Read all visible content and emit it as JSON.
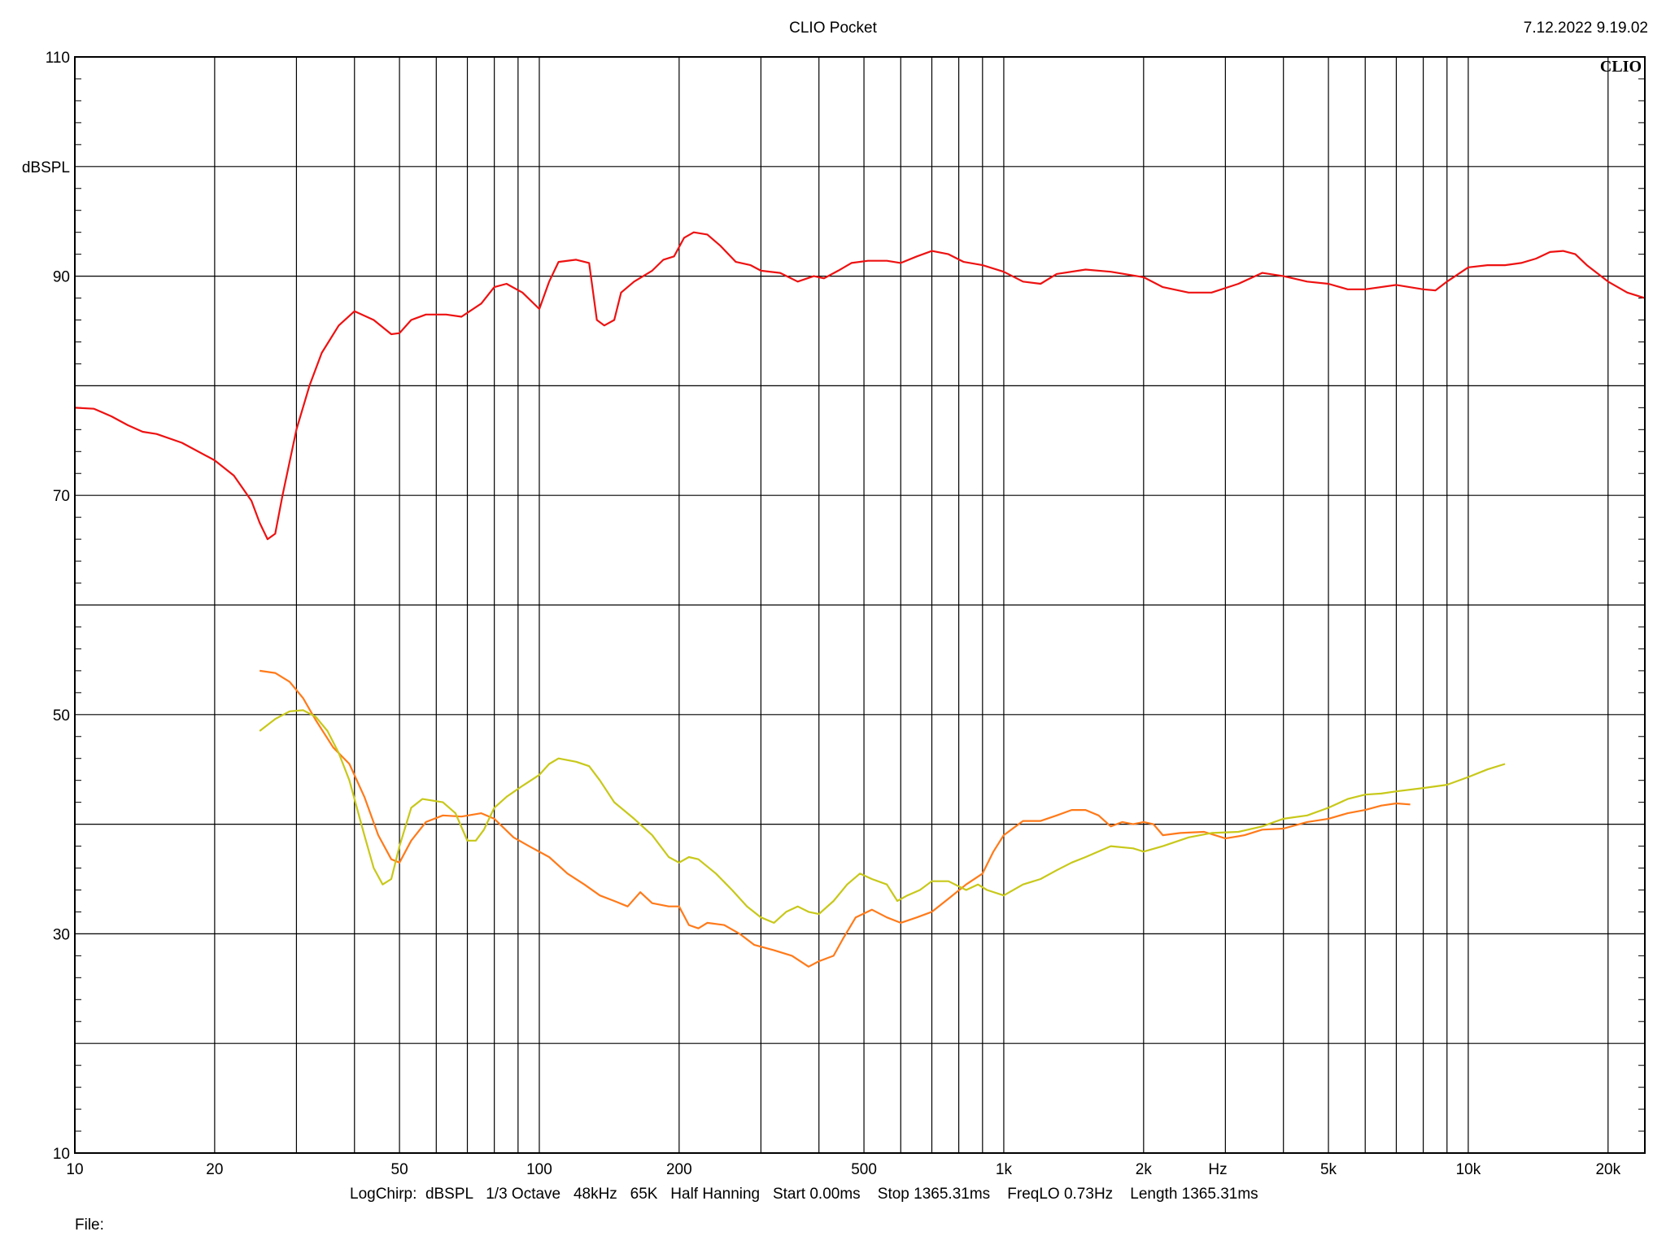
{
  "header": {
    "title": "CLIO Pocket",
    "timestamp": "7.12.2022 9.19.02",
    "logo": "CLIO"
  },
  "footer": {
    "settings": "LogChirp:  dBSPL   1/3 Octave   48kHz   65K   Half Hanning   Start 0.00ms    Stop 1365.31ms    FreqLO 0.73Hz    Length 1365.31ms",
    "file_label": "File:"
  },
  "chart_data": {
    "type": "line",
    "title": "CLIO Pocket",
    "xlabel": "Hz",
    "ylabel": "dBSPL",
    "x_scale": "log",
    "xlim": [
      10,
      24000
    ],
    "ylim": [
      10,
      110
    ],
    "grid": true,
    "x_ticks": [
      {
        "v": 10,
        "label": "10"
      },
      {
        "v": 20,
        "label": "20"
      },
      {
        "v": 50,
        "label": "50"
      },
      {
        "v": 100,
        "label": "100"
      },
      {
        "v": 200,
        "label": "200"
      },
      {
        "v": 500,
        "label": "500"
      },
      {
        "v": 1000,
        "label": "1k"
      },
      {
        "v": 2000,
        "label": "2k"
      },
      {
        "v": 5000,
        "label": "5k"
      },
      {
        "v": 10000,
        "label": "10k"
      },
      {
        "v": 20000,
        "label": "20k"
      }
    ],
    "y_ticks": [
      {
        "v": 10,
        "label": "10"
      },
      {
        "v": 30,
        "label": "30"
      },
      {
        "v": 50,
        "label": "50"
      },
      {
        "v": 70,
        "label": "70"
      },
      {
        "v": 90,
        "label": "90"
      },
      {
        "v": 110,
        "label": "110"
      }
    ],
    "series": [
      {
        "color": "#ee1111",
        "points": [
          [
            10,
            78
          ],
          [
            11,
            77.9
          ],
          [
            12,
            77.2
          ],
          [
            13,
            76.4
          ],
          [
            14,
            75.8
          ],
          [
            15,
            75.6
          ],
          [
            17,
            74.8
          ],
          [
            20,
            73.2
          ],
          [
            22,
            71.8
          ],
          [
            24,
            69.5
          ],
          [
            25,
            67.5
          ],
          [
            26,
            66.0
          ],
          [
            27,
            66.5
          ],
          [
            28,
            70.0
          ],
          [
            30,
            76.0
          ],
          [
            32,
            80.0
          ],
          [
            34,
            83.0
          ],
          [
            37,
            85.5
          ],
          [
            40,
            86.8
          ],
          [
            44,
            86.0
          ],
          [
            48,
            84.7
          ],
          [
            50,
            84.8
          ],
          [
            53,
            86.0
          ],
          [
            57,
            86.5
          ],
          [
            63,
            86.5
          ],
          [
            68,
            86.3
          ],
          [
            75,
            87.5
          ],
          [
            80,
            89.0
          ],
          [
            85,
            89.3
          ],
          [
            92,
            88.5
          ],
          [
            100,
            87.0
          ],
          [
            105,
            89.5
          ],
          [
            110,
            91.3
          ],
          [
            120,
            91.5
          ],
          [
            128,
            91.2
          ],
          [
            133,
            86.0
          ],
          [
            138,
            85.5
          ],
          [
            145,
            86.0
          ],
          [
            150,
            88.5
          ],
          [
            160,
            89.5
          ],
          [
            175,
            90.5
          ],
          [
            185,
            91.5
          ],
          [
            195,
            91.8
          ],
          [
            205,
            93.5
          ],
          [
            215,
            94.0
          ],
          [
            230,
            93.8
          ],
          [
            245,
            92.8
          ],
          [
            265,
            91.3
          ],
          [
            285,
            91.0
          ],
          [
            300,
            90.5
          ],
          [
            330,
            90.3
          ],
          [
            360,
            89.5
          ],
          [
            390,
            90.0
          ],
          [
            410,
            89.8
          ],
          [
            440,
            90.5
          ],
          [
            470,
            91.2
          ],
          [
            510,
            91.4
          ],
          [
            560,
            91.4
          ],
          [
            600,
            91.2
          ],
          [
            650,
            91.8
          ],
          [
            700,
            92.3
          ],
          [
            760,
            92.0
          ],
          [
            820,
            91.3
          ],
          [
            900,
            91.0
          ],
          [
            1000,
            90.4
          ],
          [
            1100,
            89.5
          ],
          [
            1200,
            89.3
          ],
          [
            1300,
            90.2
          ],
          [
            1500,
            90.6
          ],
          [
            1700,
            90.4
          ],
          [
            2000,
            89.9
          ],
          [
            2200,
            89.0
          ],
          [
            2500,
            88.5
          ],
          [
            2800,
            88.5
          ],
          [
            3200,
            89.3
          ],
          [
            3600,
            90.3
          ],
          [
            4000,
            90.0
          ],
          [
            4500,
            89.5
          ],
          [
            5000,
            89.3
          ],
          [
            5500,
            88.8
          ],
          [
            6000,
            88.8
          ],
          [
            7000,
            89.2
          ],
          [
            8000,
            88.8
          ],
          [
            8500,
            88.7
          ],
          [
            9000,
            89.5
          ],
          [
            10000,
            90.8
          ],
          [
            11000,
            91.0
          ],
          [
            12000,
            91.0
          ],
          [
            13000,
            91.2
          ],
          [
            14000,
            91.6
          ],
          [
            15000,
            92.2
          ],
          [
            16000,
            92.3
          ],
          [
            17000,
            92.0
          ],
          [
            18000,
            91.0
          ],
          [
            20000,
            89.5
          ],
          [
            22000,
            88.5
          ],
          [
            24000,
            88.0
          ]
        ]
      },
      {
        "color": "#ff7a1a",
        "points": [
          [
            25,
            54.0
          ],
          [
            27,
            53.8
          ],
          [
            29,
            53.0
          ],
          [
            31,
            51.5
          ],
          [
            33,
            49.5
          ],
          [
            36,
            47.0
          ],
          [
            39,
            45.5
          ],
          [
            42,
            42.5
          ],
          [
            45,
            39.0
          ],
          [
            48,
            36.8
          ],
          [
            50,
            36.5
          ],
          [
            53,
            38.5
          ],
          [
            57,
            40.2
          ],
          [
            62,
            40.8
          ],
          [
            68,
            40.7
          ],
          [
            75,
            41.0
          ],
          [
            80,
            40.5
          ],
          [
            88,
            38.8
          ],
          [
            95,
            38.0
          ],
          [
            105,
            37.0
          ],
          [
            115,
            35.5
          ],
          [
            125,
            34.5
          ],
          [
            135,
            33.5
          ],
          [
            145,
            33.0
          ],
          [
            155,
            32.5
          ],
          [
            165,
            33.8
          ],
          [
            175,
            32.8
          ],
          [
            190,
            32.5
          ],
          [
            200,
            32.5
          ],
          [
            210,
            30.8
          ],
          [
            220,
            30.5
          ],
          [
            230,
            31.0
          ],
          [
            250,
            30.8
          ],
          [
            270,
            30.0
          ],
          [
            290,
            29.0
          ],
          [
            320,
            28.5
          ],
          [
            350,
            28.0
          ],
          [
            380,
            27.0
          ],
          [
            400,
            27.5
          ],
          [
            430,
            28.0
          ],
          [
            450,
            29.5
          ],
          [
            480,
            31.5
          ],
          [
            520,
            32.2
          ],
          [
            560,
            31.5
          ],
          [
            600,
            31.0
          ],
          [
            650,
            31.5
          ],
          [
            700,
            32.0
          ],
          [
            760,
            33.2
          ],
          [
            830,
            34.5
          ],
          [
            900,
            35.5
          ],
          [
            950,
            37.5
          ],
          [
            1000,
            39.0
          ],
          [
            1100,
            40.3
          ],
          [
            1200,
            40.3
          ],
          [
            1300,
            40.8
          ],
          [
            1400,
            41.3
          ],
          [
            1500,
            41.3
          ],
          [
            1600,
            40.8
          ],
          [
            1700,
            39.8
          ],
          [
            1800,
            40.2
          ],
          [
            1900,
            40.0
          ],
          [
            2000,
            40.2
          ],
          [
            2100,
            40.0
          ],
          [
            2200,
            39.0
          ],
          [
            2400,
            39.2
          ],
          [
            2700,
            39.3
          ],
          [
            3000,
            38.7
          ],
          [
            3300,
            39.0
          ],
          [
            3600,
            39.5
          ],
          [
            4000,
            39.6
          ],
          [
            4500,
            40.2
          ],
          [
            5000,
            40.5
          ],
          [
            5500,
            41.0
          ],
          [
            6000,
            41.3
          ],
          [
            6500,
            41.7
          ],
          [
            7000,
            41.9
          ],
          [
            7500,
            41.8
          ]
        ]
      },
      {
        "color": "#c8c81a",
        "points": [
          [
            25,
            48.5
          ],
          [
            27,
            49.6
          ],
          [
            29,
            50.3
          ],
          [
            31,
            50.4
          ],
          [
            33,
            49.8
          ],
          [
            35,
            48.5
          ],
          [
            37,
            46.5
          ],
          [
            39,
            44.0
          ],
          [
            42,
            39.0
          ],
          [
            44,
            36.0
          ],
          [
            46,
            34.5
          ],
          [
            48,
            35.0
          ],
          [
            50,
            38.0
          ],
          [
            53,
            41.5
          ],
          [
            56,
            42.3
          ],
          [
            62,
            42.0
          ],
          [
            66,
            41.0
          ],
          [
            70,
            38.5
          ],
          [
            73,
            38.5
          ],
          [
            76,
            39.5
          ],
          [
            80,
            41.5
          ],
          [
            85,
            42.5
          ],
          [
            92,
            43.5
          ],
          [
            100,
            44.5
          ],
          [
            105,
            45.5
          ],
          [
            110,
            46.0
          ],
          [
            120,
            45.7
          ],
          [
            128,
            45.3
          ],
          [
            135,
            44.0
          ],
          [
            145,
            42.0
          ],
          [
            160,
            40.5
          ],
          [
            175,
            39.0
          ],
          [
            190,
            37.0
          ],
          [
            200,
            36.5
          ],
          [
            210,
            37.0
          ],
          [
            220,
            36.8
          ],
          [
            240,
            35.5
          ],
          [
            260,
            34.0
          ],
          [
            280,
            32.5
          ],
          [
            300,
            31.5
          ],
          [
            320,
            31.0
          ],
          [
            340,
            32.0
          ],
          [
            360,
            32.5
          ],
          [
            380,
            32.0
          ],
          [
            400,
            31.8
          ],
          [
            430,
            33.0
          ],
          [
            460,
            34.5
          ],
          [
            490,
            35.5
          ],
          [
            520,
            35.0
          ],
          [
            560,
            34.5
          ],
          [
            590,
            33.0
          ],
          [
            620,
            33.5
          ],
          [
            660,
            34.0
          ],
          [
            700,
            34.8
          ],
          [
            760,
            34.8
          ],
          [
            830,
            34.0
          ],
          [
            880,
            34.5
          ],
          [
            920,
            34.0
          ],
          [
            1000,
            33.5
          ],
          [
            1100,
            34.5
          ],
          [
            1200,
            35.0
          ],
          [
            1300,
            35.8
          ],
          [
            1400,
            36.5
          ],
          [
            1500,
            37.0
          ],
          [
            1700,
            38.0
          ],
          [
            1900,
            37.8
          ],
          [
            2000,
            37.5
          ],
          [
            2200,
            38.0
          ],
          [
            2500,
            38.8
          ],
          [
            2800,
            39.2
          ],
          [
            3200,
            39.3
          ],
          [
            3600,
            39.8
          ],
          [
            4000,
            40.5
          ],
          [
            4500,
            40.8
          ],
          [
            5000,
            41.5
          ],
          [
            5500,
            42.3
          ],
          [
            6000,
            42.7
          ],
          [
            6500,
            42.8
          ],
          [
            7000,
            43.0
          ],
          [
            8000,
            43.3
          ],
          [
            9000,
            43.6
          ],
          [
            10000,
            44.3
          ],
          [
            11000,
            45.0
          ],
          [
            12000,
            45.5
          ]
        ]
      }
    ]
  }
}
